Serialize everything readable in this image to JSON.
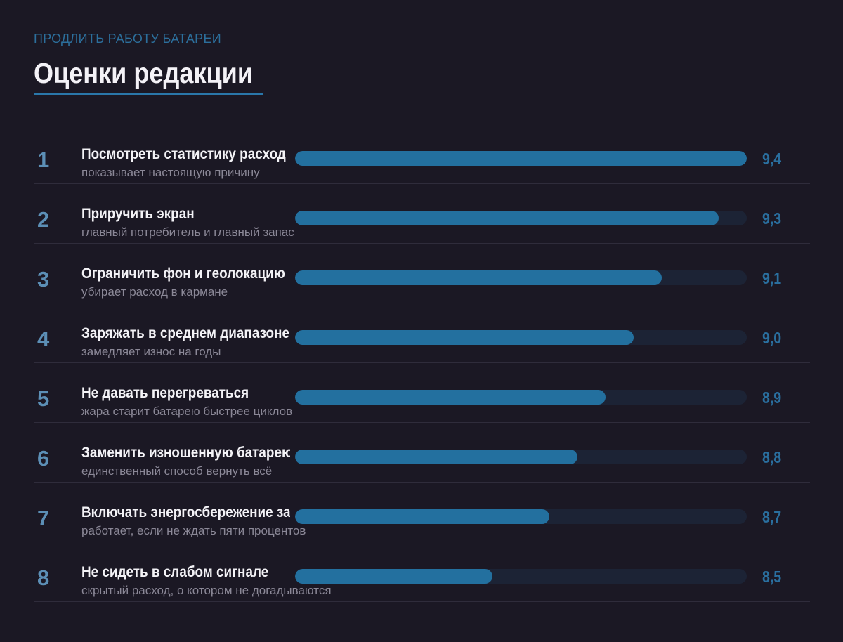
{
  "header": {
    "kicker": "ПРОДЛИТЬ РАБОТУ БАТАРЕИ",
    "title": "Оценки редакции"
  },
  "colors": {
    "background": "#1b1824",
    "accent": "#23709f",
    "track": "#1c2335",
    "rank": "#5c8fb6",
    "kicker": "#2c6f9c"
  },
  "chart_data": {
    "type": "bar",
    "orientation": "horizontal",
    "grid": false,
    "items": [
      {
        "rank": "1",
        "title": "Посмотреть статистику расход",
        "subtitle": "показывает настоящую причину",
        "score_label": "9,4",
        "value": 9.4
      },
      {
        "rank": "2",
        "title": "Приручить экран",
        "subtitle": "главный потребитель и главный запас",
        "score_label": "9,3",
        "value": 9.3
      },
      {
        "rank": "3",
        "title": "Ограничить фон и геолокацию",
        "subtitle": "убирает расход в кармане",
        "score_label": "9,1",
        "value": 9.1
      },
      {
        "rank": "4",
        "title": "Заряжать в среднем диапазоне",
        "subtitle": "замедляет износ на годы",
        "score_label": "9,0",
        "value": 9.0
      },
      {
        "rank": "5",
        "title": "Не давать перегреваться",
        "subtitle": "жара старит батарею быстрее циклов",
        "score_label": "8,9",
        "value": 8.9
      },
      {
        "rank": "6",
        "title": "Заменить изношенную батарею",
        "subtitle": "единственный способ вернуть всё",
        "score_label": "8,8",
        "value": 8.8
      },
      {
        "rank": "7",
        "title": "Включать энергосбережение за",
        "subtitle": "работает, если не ждать пяти процентов",
        "score_label": "8,7",
        "value": 8.7
      },
      {
        "rank": "8",
        "title": "Не сидеть в слабом сигнале",
        "subtitle": "скрытый расход, о котором не догадываются",
        "score_label": "8,5",
        "value": 8.5
      }
    ]
  }
}
